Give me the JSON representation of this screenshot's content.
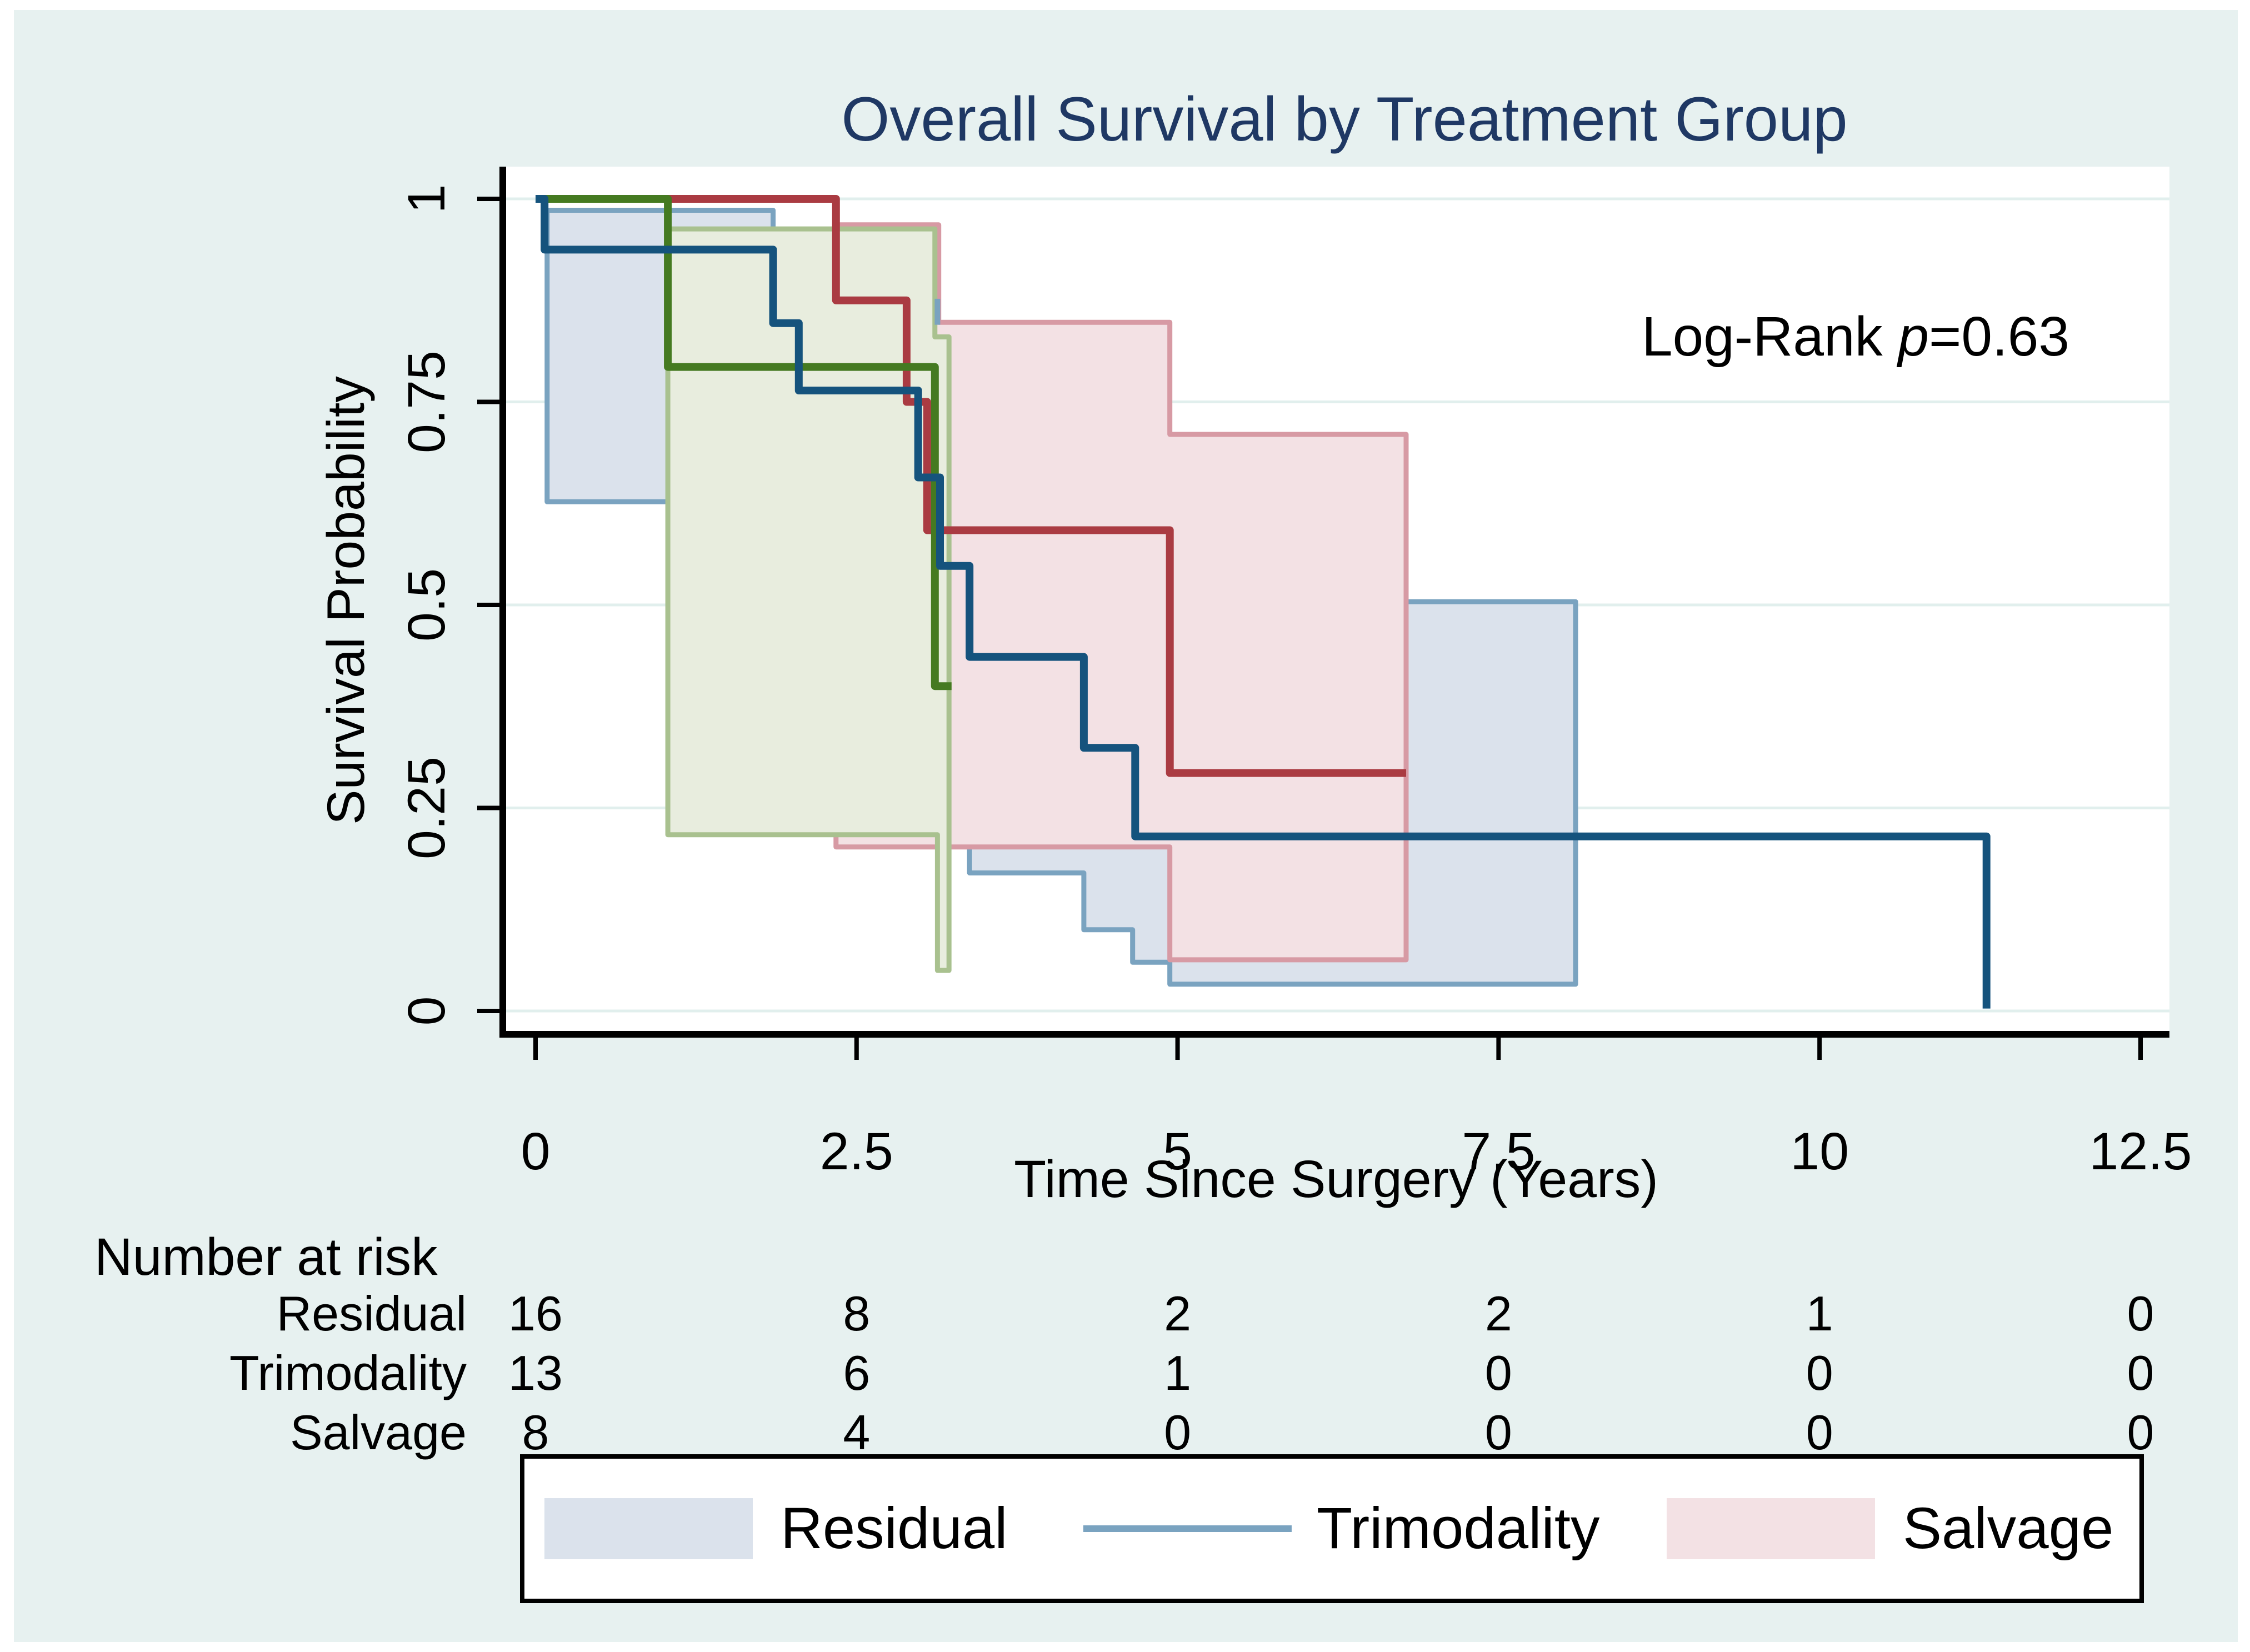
{
  "figure": {
    "background_color": "#e7f1f0",
    "plot_background": "#ffffff",
    "title_color": "#1f3864",
    "gridline_color": "#e1efed"
  },
  "chart_data": {
    "type": "line",
    "subtype": "kaplan-meier-survival",
    "title": "Overall Survival by Treatment Group",
    "xlabel": "Time Since Surgery (Years)",
    "ylabel": "Survival Probability",
    "xlim": [
      0,
      12.5
    ],
    "ylim": [
      0,
      1
    ],
    "xticks": [
      0,
      2.5,
      5,
      7.5,
      10,
      12.5
    ],
    "xtick_labels": [
      "0",
      "2.5",
      "5",
      "7.5",
      "10",
      "12.5"
    ],
    "yticks": [
      0,
      0.25,
      0.5,
      0.75,
      1
    ],
    "ytick_labels": [
      "0",
      "0.25",
      "0.5",
      "0.75",
      "1"
    ],
    "grid": "horizontal",
    "legend_position": "bottom",
    "annotation": {
      "prefix": "Log-Rank ",
      "stat": "p",
      "value": "=0.63"
    },
    "series": [
      {
        "name": "Residual",
        "line_color": "#15537d",
        "line_width": 14,
        "steps": [
          [
            0,
            1
          ],
          [
            0.07,
            0.9375
          ],
          [
            1.85,
            0.847
          ],
          [
            2.05,
            0.764
          ],
          [
            2.98,
            0.657
          ],
          [
            3.15,
            0.548
          ],
          [
            3.38,
            0.436
          ],
          [
            4.27,
            0.324
          ],
          [
            4.67,
            0.215
          ],
          [
            11.3,
            0.003
          ]
        ],
        "end_t": 11.3,
        "ci": {
          "fill": "#dbe2ec",
          "border": "#7aa3c0",
          "polygons": [
            [
              [
                0.09,
                0.986
              ],
              [
                1.85,
                0.986
              ],
              [
                1.85,
                0.627
              ],
              [
                0.09,
                0.627
              ]
            ],
            [
              [
                3.38,
                0.504
              ],
              [
                8.1,
                0.504
              ],
              [
                8.1,
                0.033
              ],
              [
                4.94,
                0.033
              ],
              [
                4.94,
                0.06
              ],
              [
                4.65,
                0.06
              ],
              [
                4.65,
                0.1
              ],
              [
                4.27,
                0.1
              ],
              [
                4.27,
                0.17
              ],
              [
                3.38,
                0.17
              ]
            ]
          ]
        }
      },
      {
        "name": "Trimodality",
        "line_color": "#aa3b42",
        "line_width": 14,
        "steps": [
          [
            0,
            1
          ],
          [
            2.34,
            0.875
          ],
          [
            2.89,
            0.75
          ],
          [
            3.05,
            0.592
          ],
          [
            4.94,
            0.293
          ]
        ],
        "end_t": 6.78,
        "ci": {
          "fill": "#f3e1e4",
          "border": "#d79aa4",
          "polygons": [
            [
              [
                2.34,
                0.968
              ],
              [
                3.14,
                0.968
              ],
              [
                3.14,
                0.848
              ],
              [
                4.94,
                0.848
              ],
              [
                4.94,
                0.71
              ],
              [
                6.78,
                0.71
              ],
              [
                6.78,
                0.063
              ],
              [
                4.94,
                0.063
              ],
              [
                4.94,
                0.202
              ],
              [
                2.34,
                0.202
              ]
            ]
          ]
        }
      },
      {
        "name": "Salvage",
        "line_color": "#457a21",
        "line_width": 14,
        "steps": [
          [
            0,
            1
          ],
          [
            1.03,
            0.793
          ],
          [
            3.11,
            0.4
          ]
        ],
        "end_t": 3.24,
        "ci": {
          "fill": "#e8edde",
          "border": "#a9c18f",
          "polygons": [
            [
              [
                1.03,
                0.963
              ],
              [
                3.11,
                0.963
              ],
              [
                3.11,
                0.83
              ],
              [
                3.22,
                0.83
              ],
              [
                3.22,
                0.05
              ],
              [
                3.13,
                0.05
              ],
              [
                3.13,
                0.217
              ],
              [
                1.03,
                0.217
              ]
            ]
          ]
        }
      }
    ],
    "censor_ticks": [
      {
        "t": 3.13,
        "s_top": 0.877,
        "s_bottom": 0.845,
        "color": "#7aa3c0"
      }
    ]
  },
  "risk_table": {
    "header": "Number at risk",
    "times": [
      0,
      2.5,
      5,
      7.5,
      10,
      12.5
    ],
    "rows": [
      {
        "label": "Residual",
        "counts": [
          "16",
          "8",
          "2",
          "2",
          "1",
          "0"
        ]
      },
      {
        "label": "Trimodality",
        "counts": [
          "13",
          "6",
          "1",
          "0",
          "0",
          "0"
        ]
      },
      {
        "label": "Salvage",
        "counts": [
          "8",
          "4",
          "0",
          "0",
          "0",
          "0"
        ]
      }
    ]
  },
  "legend": {
    "items": [
      {
        "label": "Residual",
        "swatch": "rect",
        "color": "#dbe2ec"
      },
      {
        "label": "Trimodality",
        "swatch": "line",
        "color": "#7aa3c0"
      },
      {
        "label": "Salvage",
        "swatch": "rect",
        "color": "#f3e1e4"
      }
    ]
  }
}
